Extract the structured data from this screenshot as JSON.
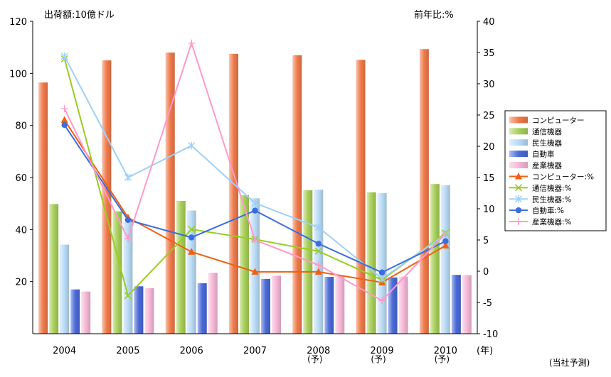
{
  "chart_data": {
    "type": "bar",
    "left_axis_title": "出荷額:10億ドル",
    "right_axis_title": "前年比:%",
    "x_unit": "(年)",
    "forecast_mark": "(予)",
    "note": "(当社予測)",
    "categories": [
      "2004",
      "2005",
      "2006",
      "2007",
      "2008",
      "2009",
      "2010"
    ],
    "forecast_flags": [
      false,
      false,
      false,
      false,
      true,
      true,
      true
    ],
    "y_left": {
      "min": 0,
      "max": 120,
      "ticks": [
        20,
        40,
        60,
        80,
        100,
        120
      ]
    },
    "y_right": {
      "min": -10,
      "max": 40,
      "ticks": [
        -10,
        -5,
        0,
        5,
        10,
        15,
        20,
        25,
        30,
        35,
        40
      ]
    },
    "bar_series": [
      {
        "name": "コンピューター",
        "color": "#f07a4a",
        "values": [
          96.5,
          105,
          108,
          107.5,
          107,
          105.2,
          109.3
        ]
      },
      {
        "name": "通信機器",
        "color": "#a8d05a",
        "values": [
          49.8,
          47,
          51,
          53.2,
          55.1,
          54.3,
          57.5
        ]
      },
      {
        "name": "民生機器",
        "color": "#b9dbf5",
        "values": [
          34.2,
          43,
          47.3,
          52,
          55.3,
          54,
          57
        ]
      },
      {
        "name": "自動車",
        "color": "#4a6bd8",
        "values": [
          17,
          18.2,
          19.4,
          21,
          21.8,
          21.6,
          22.6
        ]
      },
      {
        "name": "産業機器",
        "color": "#f6b8d8",
        "values": [
          16.2,
          17.5,
          23.4,
          22.3,
          22.4,
          21.9,
          22.5
        ]
      }
    ],
    "line_series": [
      {
        "name": "コンピューター:%",
        "color": "#f06010",
        "marker": "triangle",
        "values": [
          24.2,
          8.6,
          3.1,
          -0.1,
          -0.1,
          -1.8,
          4.1
        ]
      },
      {
        "name": "通信機器:%",
        "color": "#99cc22",
        "marker": "x",
        "values": [
          34,
          -3.9,
          6.7,
          5.1,
          3.2,
          -1.4,
          6.1
        ]
      },
      {
        "name": "民生機器:%",
        "color": "#9fd0f5",
        "marker": "asterisk",
        "values": [
          34.4,
          15,
          20.1,
          10.9,
          7,
          -1.2,
          5.9
        ]
      },
      {
        "name": "自動車:%",
        "color": "#3a6ee0",
        "marker": "circle",
        "values": [
          23.4,
          8.2,
          5.4,
          9.7,
          4.4,
          -0.2,
          4.8
        ]
      },
      {
        "name": "産業機器:%",
        "color": "#ff99cc",
        "marker": "plus",
        "values": [
          26,
          5.2,
          36.5,
          5,
          1,
          -4.7,
          6
        ]
      }
    ]
  }
}
